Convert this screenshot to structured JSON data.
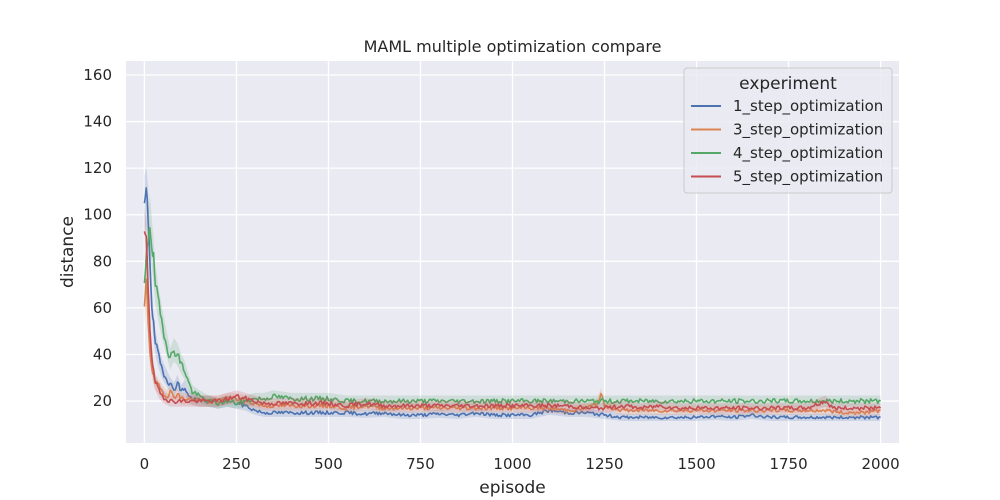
{
  "chart_data": {
    "type": "line",
    "title": "MAML multiple optimization compare",
    "xlabel": "episode",
    "ylabel": "distance",
    "xlim": [
      -50,
      2050
    ],
    "ylim": [
      2,
      166
    ],
    "xticks": [
      0,
      250,
      500,
      750,
      1000,
      1250,
      1500,
      1750,
      2000
    ],
    "yticks": [
      20,
      40,
      60,
      80,
      100,
      120,
      140,
      160
    ],
    "grid": true,
    "background": "#eaeaf2",
    "legend": {
      "title": "experiment",
      "position": "top-right"
    },
    "series": [
      {
        "name": "1_step_optimization",
        "color": "#4c72b0",
        "points": [
          [
            0,
            104
          ],
          [
            5,
            108
          ],
          [
            10,
            100
          ],
          [
            15,
            82
          ],
          [
            20,
            62
          ],
          [
            25,
            52
          ],
          [
            30,
            45
          ],
          [
            40,
            38
          ],
          [
            50,
            33
          ],
          [
            60,
            30
          ],
          [
            70,
            27
          ],
          [
            80,
            25
          ],
          [
            90,
            28
          ],
          [
            100,
            24
          ],
          [
            110,
            26
          ],
          [
            120,
            22
          ],
          [
            130,
            21
          ],
          [
            150,
            20
          ],
          [
            175,
            20
          ],
          [
            200,
            19
          ],
          [
            225,
            20
          ],
          [
            250,
            19
          ],
          [
            275,
            18
          ],
          [
            300,
            16
          ],
          [
            325,
            15
          ],
          [
            350,
            15
          ],
          [
            400,
            15
          ],
          [
            450,
            15
          ],
          [
            500,
            15
          ],
          [
            550,
            15
          ],
          [
            600,
            14.5
          ],
          [
            650,
            15
          ],
          [
            700,
            14
          ],
          [
            750,
            14
          ],
          [
            800,
            14.5
          ],
          [
            850,
            14
          ],
          [
            900,
            15
          ],
          [
            950,
            14
          ],
          [
            1000,
            14
          ],
          [
            1050,
            14
          ],
          [
            1100,
            16
          ],
          [
            1150,
            15
          ],
          [
            1200,
            15
          ],
          [
            1250,
            14
          ],
          [
            1300,
            13
          ],
          [
            1350,
            13
          ],
          [
            1400,
            13
          ],
          [
            1450,
            13
          ],
          [
            1500,
            13
          ],
          [
            1550,
            13.5
          ],
          [
            1600,
            13
          ],
          [
            1650,
            14
          ],
          [
            1700,
            13
          ],
          [
            1750,
            13
          ],
          [
            1800,
            13
          ],
          [
            1850,
            13
          ],
          [
            1900,
            13
          ],
          [
            1950,
            13
          ],
          [
            2000,
            13
          ]
        ]
      },
      {
        "name": "3_step_optimization",
        "color": "#dd8452",
        "points": [
          [
            0,
            60
          ],
          [
            5,
            70
          ],
          [
            10,
            55
          ],
          [
            15,
            42
          ],
          [
            20,
            35
          ],
          [
            25,
            30
          ],
          [
            30,
            28
          ],
          [
            40,
            26
          ],
          [
            50,
            24
          ],
          [
            60,
            22
          ],
          [
            70,
            24
          ],
          [
            80,
            22
          ],
          [
            90,
            23
          ],
          [
            100,
            21
          ],
          [
            120,
            21
          ],
          [
            150,
            20
          ],
          [
            175,
            20
          ],
          [
            200,
            20
          ],
          [
            225,
            21
          ],
          [
            250,
            21
          ],
          [
            275,
            20
          ],
          [
            300,
            19
          ],
          [
            325,
            18
          ],
          [
            350,
            18
          ],
          [
            400,
            18
          ],
          [
            450,
            18
          ],
          [
            500,
            18
          ],
          [
            550,
            17
          ],
          [
            600,
            18
          ],
          [
            650,
            17
          ],
          [
            700,
            17
          ],
          [
            750,
            17
          ],
          [
            800,
            17
          ],
          [
            850,
            17
          ],
          [
            900,
            17
          ],
          [
            950,
            17
          ],
          [
            1000,
            17
          ],
          [
            1050,
            17
          ],
          [
            1100,
            17
          ],
          [
            1150,
            16
          ],
          [
            1200,
            17
          ],
          [
            1230,
            19
          ],
          [
            1240,
            23
          ],
          [
            1250,
            18
          ],
          [
            1300,
            16
          ],
          [
            1350,
            16
          ],
          [
            1400,
            16
          ],
          [
            1450,
            16
          ],
          [
            1500,
            16
          ],
          [
            1550,
            16
          ],
          [
            1600,
            16
          ],
          [
            1650,
            16
          ],
          [
            1700,
            16
          ],
          [
            1750,
            16
          ],
          [
            1800,
            16
          ],
          [
            1850,
            16
          ],
          [
            1900,
            15
          ],
          [
            1950,
            15
          ],
          [
            2000,
            16
          ]
        ]
      },
      {
        "name": "4_step_optimization",
        "color": "#55a868",
        "points": [
          [
            0,
            70
          ],
          [
            5,
            78
          ],
          [
            10,
            90
          ],
          [
            15,
            97
          ],
          [
            20,
            88
          ],
          [
            25,
            80
          ],
          [
            30,
            70
          ],
          [
            40,
            60
          ],
          [
            50,
            52
          ],
          [
            60,
            45
          ],
          [
            70,
            38
          ],
          [
            80,
            42
          ],
          [
            90,
            40
          ],
          [
            100,
            36
          ],
          [
            110,
            33
          ],
          [
            120,
            28
          ],
          [
            130,
            24
          ],
          [
            150,
            22
          ],
          [
            175,
            20
          ],
          [
            200,
            19
          ],
          [
            225,
            20
          ],
          [
            250,
            19
          ],
          [
            275,
            20
          ],
          [
            300,
            21
          ],
          [
            325,
            21
          ],
          [
            350,
            22
          ],
          [
            400,
            21
          ],
          [
            450,
            21
          ],
          [
            500,
            21
          ],
          [
            550,
            20
          ],
          [
            600,
            20
          ],
          [
            650,
            20
          ],
          [
            700,
            20
          ],
          [
            750,
            20
          ],
          [
            800,
            20
          ],
          [
            850,
            20
          ],
          [
            900,
            20
          ],
          [
            950,
            20
          ],
          [
            1000,
            20
          ],
          [
            1050,
            20
          ],
          [
            1100,
            20
          ],
          [
            1150,
            20
          ],
          [
            1200,
            20
          ],
          [
            1250,
            20
          ],
          [
            1300,
            20
          ],
          [
            1350,
            20
          ],
          [
            1400,
            20
          ],
          [
            1450,
            20
          ],
          [
            1500,
            20
          ],
          [
            1550,
            20
          ],
          [
            1600,
            20
          ],
          [
            1650,
            20
          ],
          [
            1700,
            20
          ],
          [
            1750,
            20
          ],
          [
            1800,
            20
          ],
          [
            1850,
            20
          ],
          [
            1900,
            20
          ],
          [
            1950,
            20
          ],
          [
            2000,
            20
          ]
        ]
      },
      {
        "name": "5_step_optimization",
        "color": "#c44e52",
        "points": [
          [
            0,
            92
          ],
          [
            5,
            88
          ],
          [
            10,
            70
          ],
          [
            15,
            52
          ],
          [
            20,
            40
          ],
          [
            25,
            32
          ],
          [
            30,
            28
          ],
          [
            40,
            24
          ],
          [
            50,
            22
          ],
          [
            60,
            21
          ],
          [
            70,
            20
          ],
          [
            80,
            20
          ],
          [
            100,
            20
          ],
          [
            125,
            20
          ],
          [
            150,
            20
          ],
          [
            175,
            20
          ],
          [
            200,
            20
          ],
          [
            225,
            21
          ],
          [
            250,
            22
          ],
          [
            275,
            21
          ],
          [
            300,
            20
          ],
          [
            325,
            19
          ],
          [
            350,
            19
          ],
          [
            400,
            19
          ],
          [
            450,
            19
          ],
          [
            500,
            19
          ],
          [
            550,
            18
          ],
          [
            600,
            19
          ],
          [
            650,
            18
          ],
          [
            700,
            18
          ],
          [
            750,
            18
          ],
          [
            800,
            18
          ],
          [
            850,
            18
          ],
          [
            900,
            18
          ],
          [
            950,
            18
          ],
          [
            1000,
            18
          ],
          [
            1050,
            18
          ],
          [
            1100,
            18
          ],
          [
            1150,
            18
          ],
          [
            1200,
            17
          ],
          [
            1250,
            17
          ],
          [
            1300,
            18
          ],
          [
            1350,
            17
          ],
          [
            1400,
            18
          ],
          [
            1450,
            17
          ],
          [
            1500,
            17
          ],
          [
            1550,
            17
          ],
          [
            1600,
            17
          ],
          [
            1650,
            17
          ],
          [
            1700,
            17
          ],
          [
            1750,
            17
          ],
          [
            1800,
            17
          ],
          [
            1850,
            20
          ],
          [
            1870,
            17
          ],
          [
            1900,
            17
          ],
          [
            1950,
            17
          ],
          [
            2000,
            17
          ]
        ]
      }
    ]
  }
}
